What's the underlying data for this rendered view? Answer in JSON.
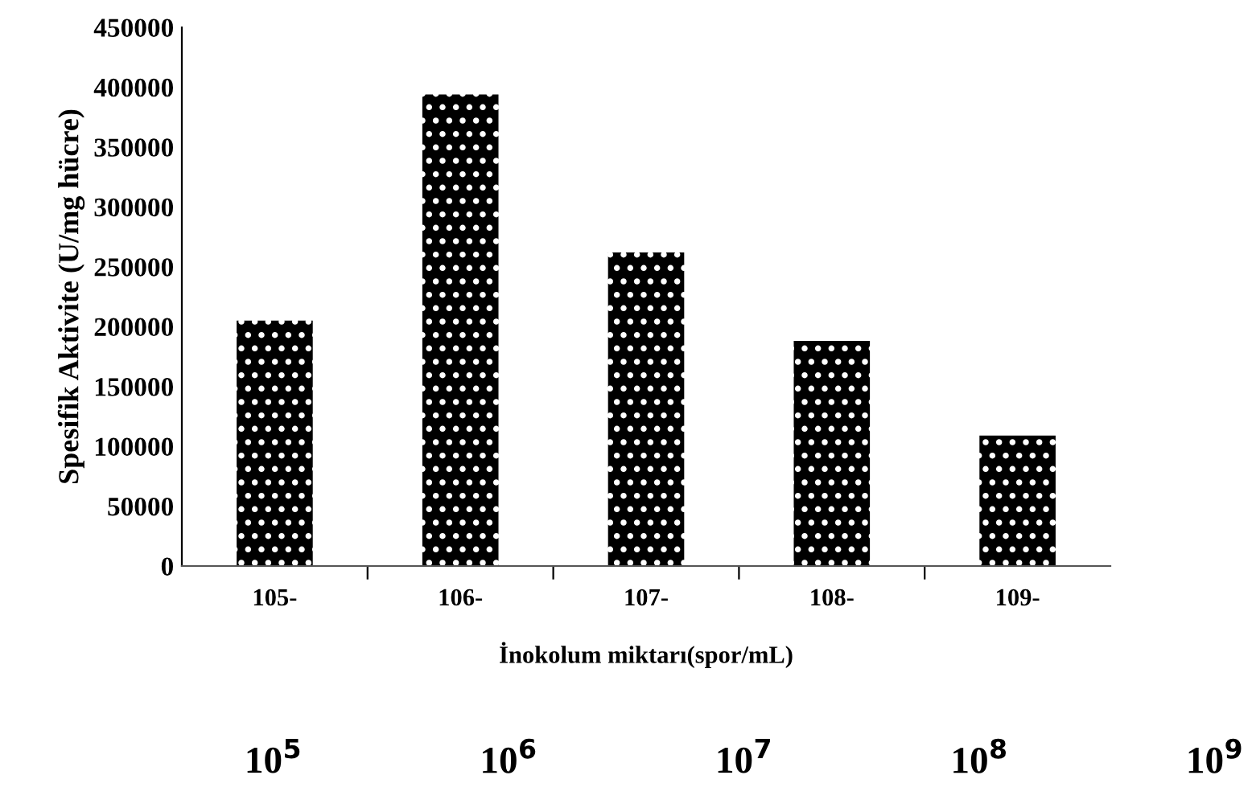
{
  "chart_data": {
    "type": "bar",
    "xlabel": "İnokolum miktarı(spor/mL)",
    "ylabel": "Spesifik Aktivite (U/mg hücre)",
    "categories": [
      "105-",
      "106-",
      "107-",
      "108-",
      "109-"
    ],
    "values": [
      205000,
      394000,
      262000,
      188000,
      109000
    ],
    "color": "#000000",
    "ylim": [
      0,
      450000
    ],
    "yticks": [
      0,
      50000,
      100000,
      150000,
      200000,
      250000,
      300000,
      350000,
      400000,
      450000
    ],
    "annotations": [
      "10$^{5}$",
      "10$^{6}$",
      "10$^{7}$",
      "10$^{8}$",
      "10$^{9}$"
    ]
  }
}
